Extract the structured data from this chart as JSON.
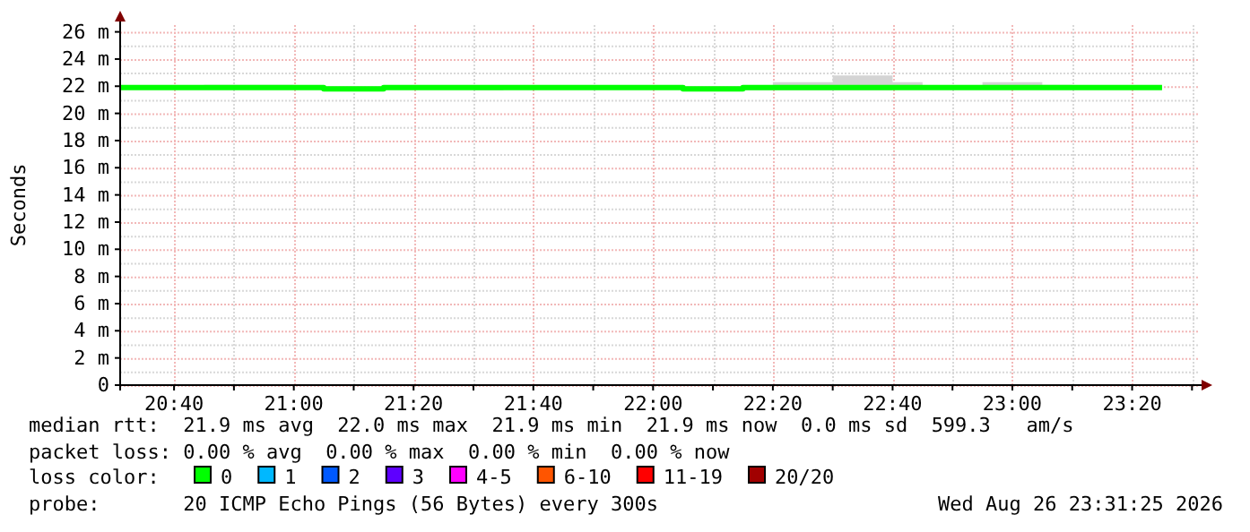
{
  "chart_data": {
    "type": "step",
    "ylabel": "Seconds",
    "x": [
      "2026-08-26T20:31",
      "2026-08-26T20:35",
      "2026-08-26T20:40",
      "2026-08-26T20:45",
      "2026-08-26T20:50",
      "2026-08-26T20:55",
      "2026-08-26T21:00",
      "2026-08-26T21:05",
      "2026-08-26T21:10",
      "2026-08-26T21:15",
      "2026-08-26T21:20",
      "2026-08-26T21:25",
      "2026-08-26T21:30",
      "2026-08-26T21:35",
      "2026-08-26T21:40",
      "2026-08-26T21:45",
      "2026-08-26T21:50",
      "2026-08-26T21:55",
      "2026-08-26T22:00",
      "2026-08-26T22:05",
      "2026-08-26T22:10",
      "2026-08-26T22:15",
      "2026-08-26T22:20",
      "2026-08-26T22:25",
      "2026-08-26T22:30",
      "2026-08-26T22:35",
      "2026-08-26T22:40",
      "2026-08-26T22:45",
      "2026-08-26T22:50",
      "2026-08-26T22:55",
      "2026-08-26T23:00",
      "2026-08-26T23:05",
      "2026-08-26T23:10",
      "2026-08-26T23:15",
      "2026-08-26T23:20",
      "2026-08-26T23:25"
    ],
    "series": [
      {
        "name": "0",
        "color": "#00ff00",
        "values": [
          21.9,
          21.9,
          21.9,
          21.9,
          21.9,
          21.9,
          21.9,
          21.9,
          21.8,
          21.8,
          21.9,
          21.9,
          21.9,
          21.9,
          21.9,
          21.9,
          21.9,
          21.9,
          21.9,
          21.9,
          21.8,
          21.8,
          21.9,
          21.9,
          21.9,
          21.9,
          21.9,
          21.9,
          21.9,
          21.9,
          21.9,
          21.9,
          21.9,
          21.9,
          21.9,
          21.9
        ],
        "lower": [
          21.8,
          21.8,
          21.8,
          21.8,
          21.8,
          21.8,
          21.8,
          21.8,
          21.7,
          21.7,
          21.8,
          21.8,
          21.8,
          21.7,
          21.8,
          21.8,
          21.8,
          21.8,
          21.8,
          21.8,
          21.7,
          21.7,
          21.7,
          21.7,
          21.7,
          21.7,
          21.7,
          21.8,
          21.8,
          21.8,
          21.8,
          21.8,
          21.8,
          21.8,
          21.8,
          21.8
        ],
        "upper": [
          22.0,
          22.0,
          22.0,
          22.0,
          22.1,
          22.1,
          22.1,
          22.0,
          22.0,
          22.0,
          22.0,
          22.0,
          22.0,
          22.0,
          22.0,
          22.0,
          22.0,
          22.0,
          22.0,
          22.0,
          22.0,
          22.0,
          22.0,
          22.3,
          22.3,
          22.8,
          22.8,
          22.3,
          22.0,
          22.0,
          22.3,
          22.3,
          22.1,
          22.0,
          22.0,
          22.0
        ]
      },
      {
        "name": "1",
        "color": "#00b8ff",
        "values": [
          null,
          null,
          null,
          null,
          null,
          null,
          null,
          null,
          null,
          null,
          null,
          null,
          null,
          null,
          null,
          null,
          null,
          null,
          null,
          null,
          null,
          null,
          null,
          null,
          null,
          null,
          null,
          null,
          null,
          null,
          null,
          null,
          null,
          null,
          null,
          null
        ]
      },
      {
        "name": "2",
        "color": "#0059ff",
        "values": [
          null,
          null,
          null,
          null,
          null,
          null,
          null,
          null,
          null,
          null,
          null,
          null,
          null,
          null,
          null,
          null,
          null,
          null,
          null,
          null,
          null,
          null,
          null,
          null,
          null,
          null,
          null,
          null,
          null,
          null,
          null,
          null,
          null,
          null,
          null,
          null
        ]
      },
      {
        "name": "3",
        "color": "#5e00ff",
        "values": [
          null,
          null,
          null,
          null,
          null,
          null,
          null,
          null,
          null,
          null,
          null,
          null,
          null,
          null,
          null,
          null,
          null,
          null,
          null,
          null,
          null,
          null,
          null,
          null,
          null,
          null,
          null,
          null,
          null,
          null,
          null,
          null,
          null,
          null,
          null,
          null
        ]
      },
      {
        "name": "4-5",
        "color": "#ff00ff",
        "values": [
          null,
          null,
          null,
          null,
          null,
          null,
          null,
          null,
          null,
          null,
          null,
          null,
          null,
          null,
          null,
          null,
          null,
          null,
          null,
          null,
          null,
          null,
          null,
          null,
          null,
          null,
          null,
          null,
          null,
          null,
          null,
          null,
          null,
          null,
          null,
          null
        ]
      },
      {
        "name": "6-10",
        "color": "#ff5500",
        "values": [
          null,
          null,
          null,
          null,
          null,
          null,
          null,
          null,
          null,
          null,
          null,
          null,
          null,
          null,
          null,
          null,
          null,
          null,
          null,
          null,
          null,
          null,
          null,
          null,
          null,
          null,
          null,
          null,
          null,
          null,
          null,
          null,
          null,
          null,
          null,
          null
        ]
      },
      {
        "name": "11-19",
        "color": "#ff0000",
        "values": [
          null,
          null,
          null,
          null,
          null,
          null,
          null,
          null,
          null,
          null,
          null,
          null,
          null,
          null,
          null,
          null,
          null,
          null,
          null,
          null,
          null,
          null,
          null,
          null,
          null,
          null,
          null,
          null,
          null,
          null,
          null,
          null,
          null,
          null,
          null,
          null
        ]
      },
      {
        "name": "20/20",
        "color": "#a10000",
        "values": [
          null,
          null,
          null,
          null,
          null,
          null,
          null,
          null,
          null,
          null,
          null,
          null,
          null,
          null,
          null,
          null,
          null,
          null,
          null,
          null,
          null,
          null,
          null,
          null,
          null,
          null,
          null,
          null,
          null,
          null,
          null,
          null,
          null,
          null,
          null,
          null
        ]
      }
    ],
    "xlim": [
      "2026-08-26T20:31",
      "2026-08-26T23:31"
    ],
    "xticks": [
      {
        "value": "2026-08-26T20:40",
        "label": "20:40"
      },
      {
        "value": "2026-08-26T20:50",
        "label": null
      },
      {
        "value": "2026-08-26T21:00",
        "label": "21:00"
      },
      {
        "value": "2026-08-26T21:10",
        "label": null
      },
      {
        "value": "2026-08-26T21:20",
        "label": "21:20"
      },
      {
        "value": "2026-08-26T21:30",
        "label": null
      },
      {
        "value": "2026-08-26T21:40",
        "label": "21:40"
      },
      {
        "value": "2026-08-26T21:50",
        "label": null
      },
      {
        "value": "2026-08-26T22:00",
        "label": "22:00"
      },
      {
        "value": "2026-08-26T22:10",
        "label": null
      },
      {
        "value": "2026-08-26T22:20",
        "label": "22:20"
      },
      {
        "value": "2026-08-26T22:30",
        "label": null
      },
      {
        "value": "2026-08-26T22:40",
        "label": "22:40"
      },
      {
        "value": "2026-08-26T22:50",
        "label": null
      },
      {
        "value": "2026-08-26T23:00",
        "label": "23:00"
      },
      {
        "value": "2026-08-26T23:10",
        "label": null
      },
      {
        "value": "2026-08-26T23:20",
        "label": "23:20"
      },
      {
        "value": "2026-08-26T23:30",
        "label": null
      }
    ],
    "ylim": [
      0,
      26.5
    ],
    "yticks": [
      0,
      {
        "value": 2,
        "label": "2 m"
      },
      {
        "value": 4,
        "label": "4 m"
      },
      {
        "value": 6,
        "label": "6 m"
      },
      {
        "value": 8,
        "label": "8 m"
      },
      {
        "value": 10,
        "label": "10 m"
      },
      {
        "value": 12,
        "label": "12 m"
      },
      {
        "value": 14,
        "label": "14 m"
      },
      {
        "value": 16,
        "label": "16 m"
      },
      {
        "value": 18,
        "label": "18 m"
      },
      {
        "value": 20,
        "label": "20 m"
      },
      {
        "value": 22,
        "label": "22 m"
      },
      {
        "value": 24,
        "label": "24 m"
      },
      {
        "value": 26,
        "label": "26 m"
      }
    ],
    "grid": true,
    "legend": "bottom",
    "legend_title": "loss color:",
    "annotations": [
      "median rtt:  21.9 ms avg  22.0 ms max  21.9 ms min  21.9 ms now  0.0 ms sd  599.3   am/s",
      "packet loss: 0.00 % avg  0.00 % max  0.00 % min  0.00 % now",
      "probe:       20 ICMP Echo Pings (56 Bytes) every 300s",
      "Wed Aug 26 23:31:25 2026"
    ]
  }
}
